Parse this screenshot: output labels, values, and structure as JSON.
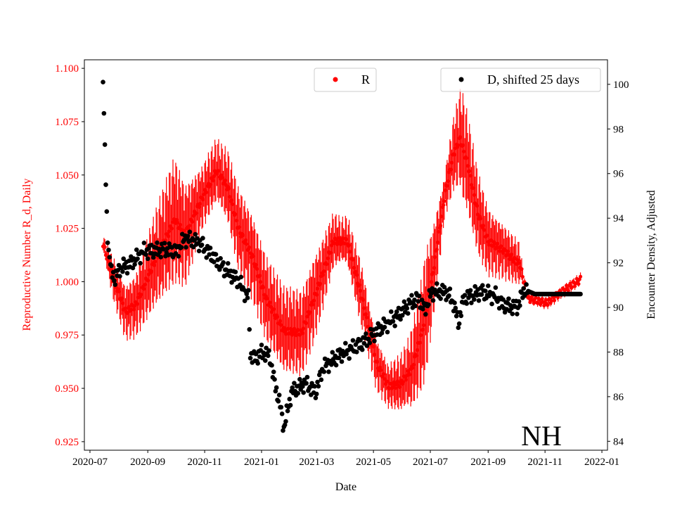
{
  "chart_data": {
    "type": "scatter",
    "title": "",
    "watermark_label": "NH",
    "xlabel": "Date",
    "ylabel_left": "Reproductive Number R_d, Daily",
    "ylabel_right": "Encounter Density, Adjusted",
    "start_date": "2020-07-01",
    "xlim_days": [
      -6,
      555
    ],
    "x_ticks": [
      {
        "label": "2020-07",
        "day": 0
      },
      {
        "label": "2020-09",
        "day": 62
      },
      {
        "label": "2020-11",
        "day": 123
      },
      {
        "label": "2021-01",
        "day": 184
      },
      {
        "label": "2021-03",
        "day": 243
      },
      {
        "label": "2021-05",
        "day": 304
      },
      {
        "label": "2021-07",
        "day": 365
      },
      {
        "label": "2021-09",
        "day": 427
      },
      {
        "label": "2021-11",
        "day": 488
      },
      {
        "label": "2022-01",
        "day": 549
      }
    ],
    "ylim_left": [
      0.921,
      1.104
    ],
    "y_ticks_left": [
      "0.925",
      "0.950",
      "0.975",
      "1.000",
      "1.025",
      "1.050",
      "1.075",
      "1.100"
    ],
    "ylim_right": [
      83.6,
      101.1
    ],
    "y_ticks_right": [
      "84",
      "86",
      "88",
      "90",
      "92",
      "94",
      "96",
      "98",
      "100"
    ],
    "colors": {
      "R": "#ff0000",
      "D": "#000000",
      "axis_left": "#ff0000"
    },
    "legend": [
      {
        "label": "R",
        "placement": "top-center"
      },
      {
        "label": "D, shifted 25 days",
        "placement": "top-right"
      }
    ],
    "series_R": {
      "name": "R",
      "center_keypoints": [
        [
          14,
          1.018
        ],
        [
          23,
          1.004
        ],
        [
          38,
          0.986
        ],
        [
          49,
          0.989
        ],
        [
          72,
          1.012
        ],
        [
          91,
          1.029
        ],
        [
          102,
          1.022
        ],
        [
          121,
          1.04
        ],
        [
          136,
          1.052
        ],
        [
          148,
          1.044
        ],
        [
          159,
          1.025
        ],
        [
          174,
          1.012
        ],
        [
          189,
          0.992
        ],
        [
          208,
          0.977
        ],
        [
          227,
          0.976
        ],
        [
          246,
          0.999
        ],
        [
          261,
          1.019
        ],
        [
          276,
          1.019
        ],
        [
          292,
          0.992
        ],
        [
          307,
          0.962
        ],
        [
          320,
          0.951
        ],
        [
          333,
          0.952
        ],
        [
          345,
          0.959
        ],
        [
          356,
          0.976
        ],
        [
          367,
          1.002
        ],
        [
          381,
          1.042
        ],
        [
          390,
          1.06
        ],
        [
          397,
          1.067
        ],
        [
          405,
          1.055
        ],
        [
          416,
          1.032
        ],
        [
          427,
          1.019
        ],
        [
          442,
          1.015
        ],
        [
          461,
          1.008
        ],
        [
          470,
          0.992
        ],
        [
          490,
          0.99
        ],
        [
          505,
          0.995
        ],
        [
          526,
          1.001
        ]
      ],
      "error_keypoints": [
        [
          14,
          0.003
        ],
        [
          25,
          0.01
        ],
        [
          50,
          0.015
        ],
        [
          90,
          0.03
        ],
        [
          120,
          0.015
        ],
        [
          140,
          0.015
        ],
        [
          160,
          0.02
        ],
        [
          200,
          0.02
        ],
        [
          240,
          0.02
        ],
        [
          270,
          0.01
        ],
        [
          290,
          0.015
        ],
        [
          320,
          0.01
        ],
        [
          340,
          0.015
        ],
        [
          360,
          0.03
        ],
        [
          380,
          0.01
        ],
        [
          400,
          0.025
        ],
        [
          430,
          0.015
        ],
        [
          460,
          0.01
        ],
        [
          465,
          0.002
        ],
        [
          526,
          0.002
        ]
      ]
    },
    "series_D": {
      "name": "D, shifted 25 days",
      "keypoints": [
        [
          14,
          100.1
        ],
        [
          15,
          98.7
        ],
        [
          16,
          97.3
        ],
        [
          17,
          95.5
        ],
        [
          18,
          94.3
        ],
        [
          19,
          92.9
        ],
        [
          23,
          91.6
        ],
        [
          27,
          91.3
        ],
        [
          33,
          91.8
        ],
        [
          42,
          91.9
        ],
        [
          57,
          92.5
        ],
        [
          80,
          92.6
        ],
        [
          93,
          92.5
        ],
        [
          102,
          93.1
        ],
        [
          117,
          92.9
        ],
        [
          129,
          92.4
        ],
        [
          140,
          91.9
        ],
        [
          151,
          91.5
        ],
        [
          159,
          91.2
        ],
        [
          170,
          90.4
        ],
        [
          172,
          87.9
        ],
        [
          178,
          87.7
        ],
        [
          184,
          88.0
        ],
        [
          193,
          87.8
        ],
        [
          197,
          86.8
        ],
        [
          204,
          85.6
        ],
        [
          208,
          84.6
        ],
        [
          216,
          86.2
        ],
        [
          231,
          86.6
        ],
        [
          242,
          86.2
        ],
        [
          250,
          87.3
        ],
        [
          269,
          87.9
        ],
        [
          292,
          88.4
        ],
        [
          310,
          89.0
        ],
        [
          329,
          89.6
        ],
        [
          344,
          90.2
        ],
        [
          352,
          90.4
        ],
        [
          359,
          89.9
        ],
        [
          367,
          90.7
        ],
        [
          382,
          90.7
        ],
        [
          390,
          90.2
        ],
        [
          395,
          89.3
        ],
        [
          401,
          90.4
        ],
        [
          420,
          90.7
        ],
        [
          435,
          90.5
        ],
        [
          443,
          90.1
        ],
        [
          458,
          90.0
        ],
        [
          466,
          90.8
        ],
        [
          477,
          90.6
        ],
        [
          526,
          90.6
        ]
      ]
    }
  }
}
